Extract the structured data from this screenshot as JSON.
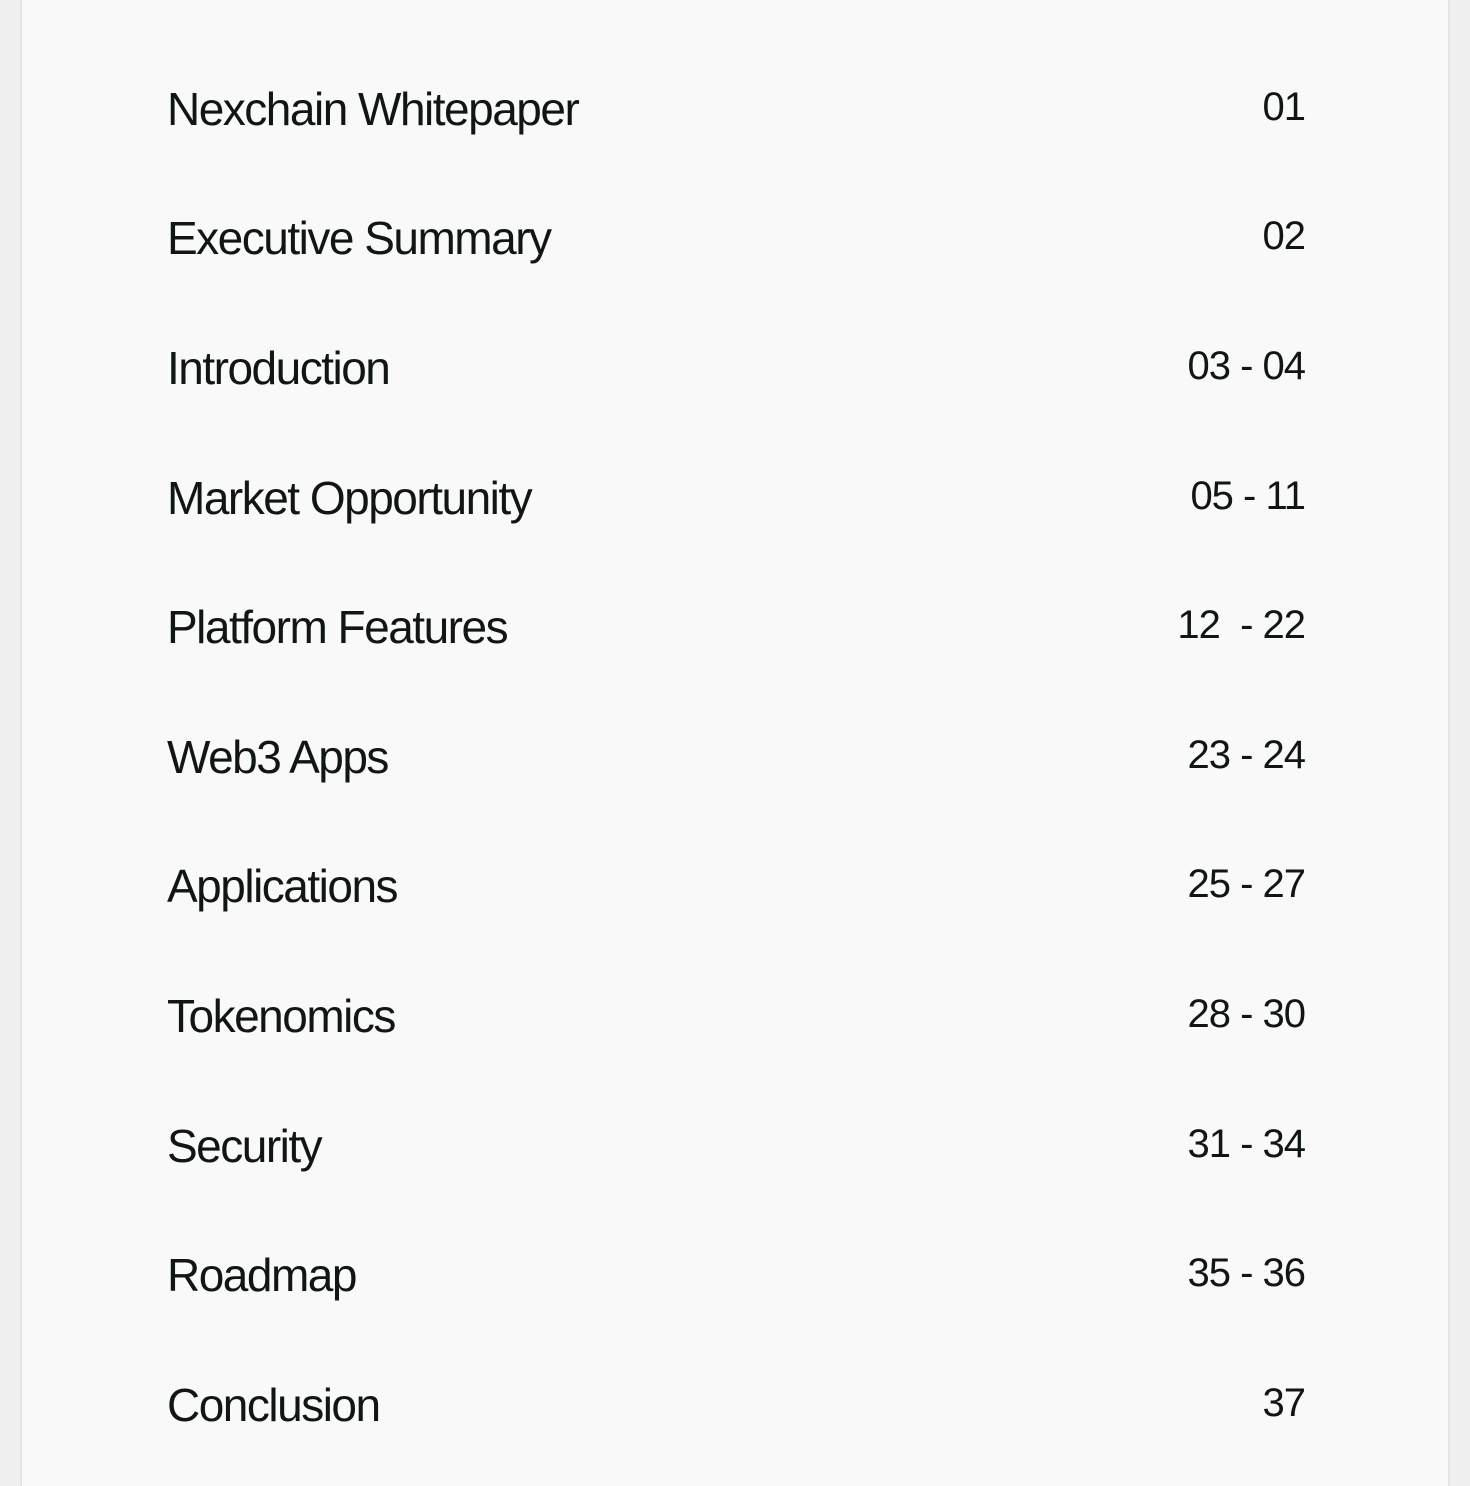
{
  "toc": {
    "items": [
      {
        "title": "Nexchain Whitepaper",
        "pages": "01"
      },
      {
        "title": "Executive Summary",
        "pages": "02"
      },
      {
        "title": "Introduction",
        "pages": "03 - 04"
      },
      {
        "title": "Market Opportunity",
        "pages": "05 - 11"
      },
      {
        "title": "Platform Features",
        "pages": "12  - 22"
      },
      {
        "title": "Web3 Apps",
        "pages": "23 - 24"
      },
      {
        "title": "Applications",
        "pages": "25 - 27"
      },
      {
        "title": "Tokenomics",
        "pages": "28 - 30"
      },
      {
        "title": "Security",
        "pages": "31 - 34"
      },
      {
        "title": "Roadmap",
        "pages": "35 - 36"
      },
      {
        "title": "Conclusion",
        "pages": "37"
      }
    ]
  }
}
